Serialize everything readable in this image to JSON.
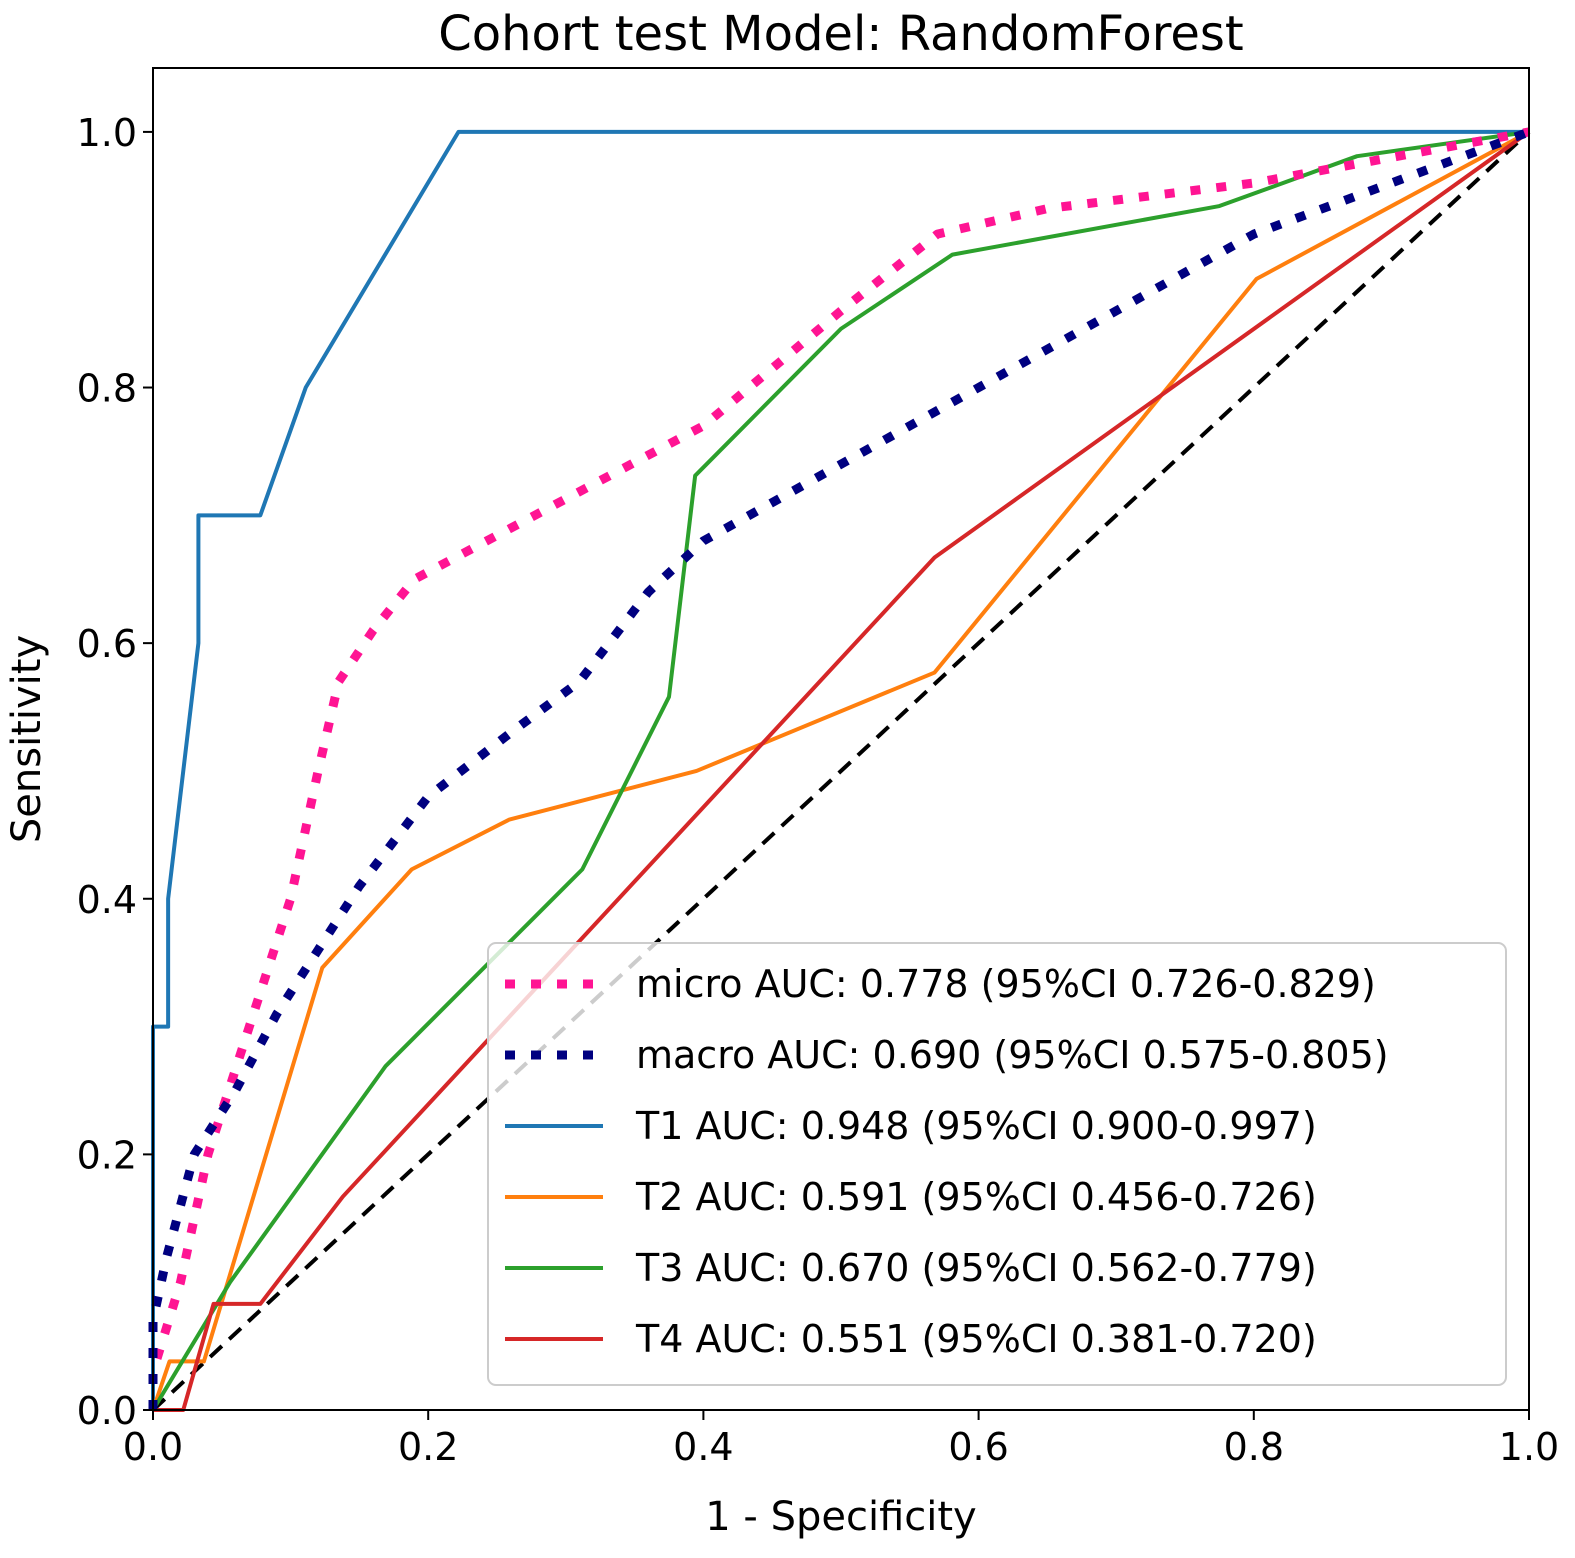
{
  "chart_data": {
    "type": "line",
    "title": "Cohort test Model: RandomForest",
    "xlabel": "1 - Specificity",
    "ylabel": "Sensitivity",
    "xlim": [
      0.0,
      1.0
    ],
    "ylim": [
      0.0,
      1.05
    ],
    "xticks": [
      "0.0",
      "0.2",
      "0.4",
      "0.6",
      "0.8",
      "1.0"
    ],
    "yticks": [
      "0.0",
      "0.2",
      "0.4",
      "0.6",
      "0.8",
      "1.0"
    ],
    "grid": false,
    "legend_position": "lower-right",
    "series": [
      {
        "name": "micro AUC: 0.778 (95%CI 0.726-0.829)",
        "color": "#ff1493",
        "style": "dotted",
        "x": [
          0.0,
          0.0,
          0.02,
          0.04,
          0.07,
          0.1,
          0.12,
          0.135,
          0.16,
          0.19,
          0.26,
          0.33,
          0.4,
          0.5,
          0.57,
          0.65,
          0.8,
          0.9,
          1.0
        ],
        "y": [
          0.0,
          0.03,
          0.1,
          0.2,
          0.3,
          0.4,
          0.5,
          0.57,
          0.61,
          0.65,
          0.69,
          0.73,
          0.77,
          0.86,
          0.92,
          0.94,
          0.96,
          0.98,
          1.0
        ]
      },
      {
        "name": "macro AUC: 0.690 (95%CI 0.575-0.805)",
        "color": "#000080",
        "style": "dotted",
        "x": [
          0.0,
          0.0,
          0.01,
          0.03,
          0.06,
          0.09,
          0.12,
          0.15,
          0.2,
          0.26,
          0.31,
          0.36,
          0.4,
          0.5,
          0.6,
          0.7,
          0.8,
          0.9,
          1.0
        ],
        "y": [
          0.0,
          0.07,
          0.12,
          0.2,
          0.25,
          0.31,
          0.36,
          0.41,
          0.48,
          0.53,
          0.57,
          0.64,
          0.68,
          0.74,
          0.8,
          0.86,
          0.92,
          0.96,
          1.0
        ]
      },
      {
        "name": "T1 AUC: 0.948 (95%CI 0.900-0.997)",
        "color": "#1f77b4",
        "style": "solid",
        "x": [
          0.0,
          0.0,
          0.011,
          0.011,
          0.033,
          0.033,
          0.078,
          0.111,
          0.222,
          1.0
        ],
        "y": [
          0.0,
          0.3,
          0.3,
          0.4,
          0.6,
          0.7,
          0.7,
          0.8,
          1.0,
          1.0
        ]
      },
      {
        "name": "T2 AUC: 0.591 (95%CI 0.456-0.726)",
        "color": "#ff7f0e",
        "style": "solid",
        "x": [
          0.0,
          0.012,
          0.037,
          0.123,
          0.188,
          0.259,
          0.395,
          0.568,
          0.802,
          1.0
        ],
        "y": [
          0.0,
          0.038,
          0.038,
          0.346,
          0.423,
          0.462,
          0.5,
          0.577,
          0.885,
          1.0
        ]
      },
      {
        "name": "T3 AUC: 0.670 (95%CI 0.562-0.779)",
        "color": "#2ca02c",
        "style": "solid",
        "x": [
          0.0,
          0.056,
          0.169,
          0.312,
          0.375,
          0.394,
          0.5,
          0.581,
          0.775,
          0.875,
          1.0
        ],
        "y": [
          0.0,
          0.1,
          0.269,
          0.423,
          0.558,
          0.731,
          0.846,
          0.904,
          0.942,
          0.981,
          1.0
        ]
      },
      {
        "name": "T4 AUC: 0.551 (95%CI 0.381-0.720)",
        "color": "#d62728",
        "style": "solid",
        "x": [
          0.0,
          0.022,
          0.044,
          0.078,
          0.138,
          0.568,
          1.0
        ],
        "y": [
          0.0,
          0.0,
          0.083,
          0.083,
          0.167,
          0.667,
          1.0
        ]
      }
    ],
    "reference_line": {
      "x": [
        0.0,
        1.0
      ],
      "y": [
        0.0,
        1.0
      ],
      "color": "#000000",
      "style": "dashed"
    }
  }
}
